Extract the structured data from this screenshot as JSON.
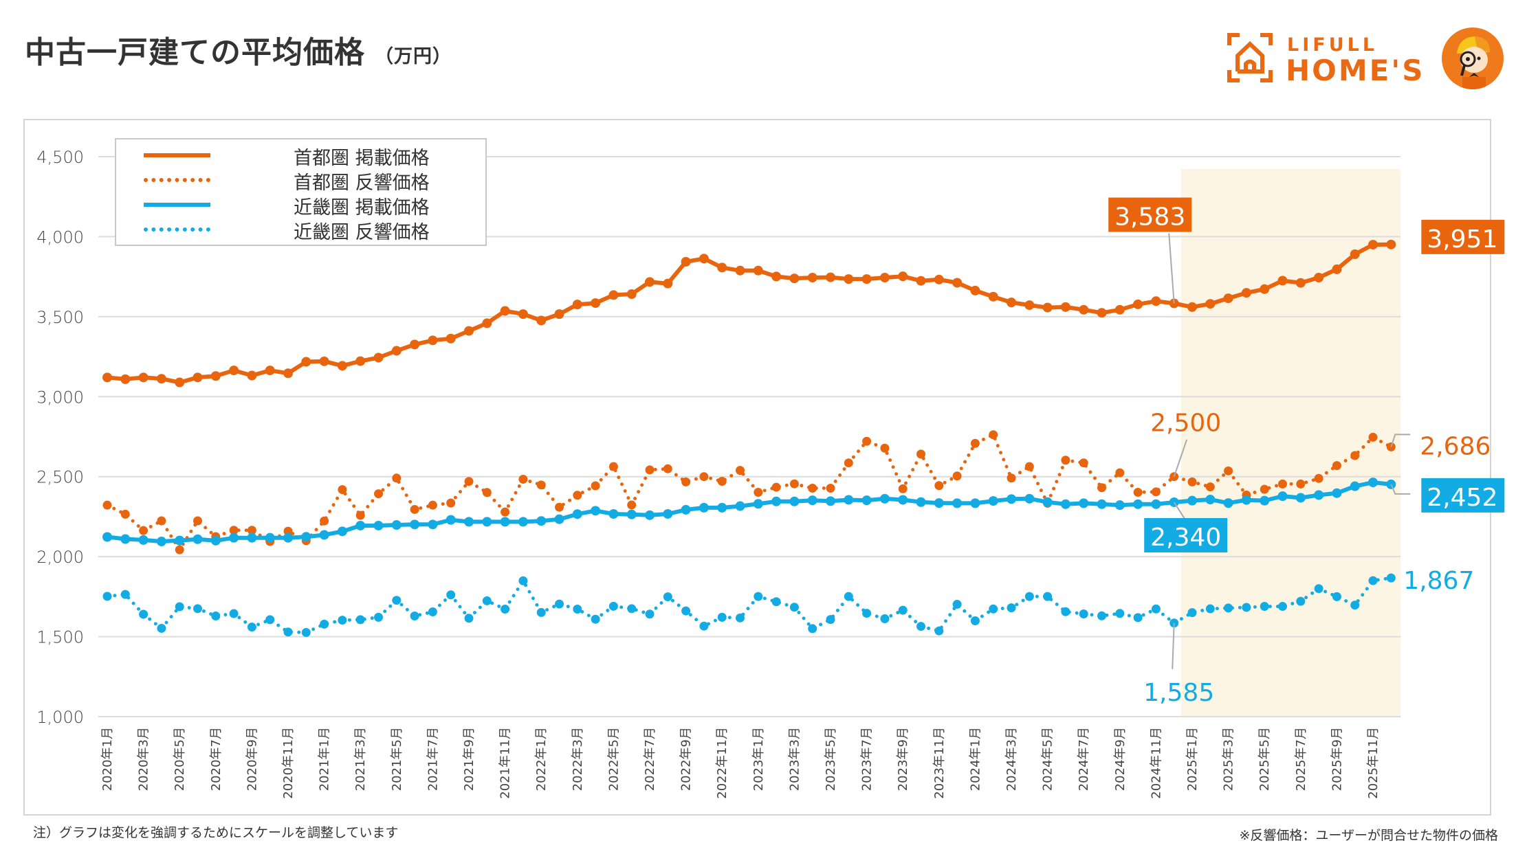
{
  "header": {
    "title": "中古一戸建ての平均価格",
    "unit": "（万円）"
  },
  "logo": {
    "line1": "LIFULL",
    "line2": "HOME'S",
    "icon": "house-bracket-icon",
    "mascot": "mascot-detective-icon"
  },
  "colors": {
    "tokyo": "#E8650E",
    "kinki": "#12ABE3",
    "highlight": "#FDF5E3",
    "grid": "#dddddd"
  },
  "notes": {
    "left": "注）グラフは変化を強調するためにスケールを調整しています",
    "right": "※反響価格：ユーザーが問合せた物件の価格"
  },
  "chart_data": {
    "type": "line",
    "title": "中古一戸建ての平均価格（万円）",
    "xlabel": "",
    "ylabel": "",
    "ylim": [
      1000,
      4500
    ],
    "yticks": [
      1000,
      1500,
      2000,
      2500,
      3000,
      3500,
      4000,
      4500
    ],
    "ytick_labels": [
      "1,000",
      "1,500",
      "2,000",
      "2,500",
      "3,000",
      "3,500",
      "4,000",
      "4,500"
    ],
    "grid": true,
    "legend_position": "top-left",
    "highlight_range": [
      "2025年1月",
      "2025年12月"
    ],
    "x": [
      "2020年1月",
      "2020年2月",
      "2020年3月",
      "2020年4月",
      "2020年5月",
      "2020年6月",
      "2020年7月",
      "2020年8月",
      "2020年9月",
      "2020年10月",
      "2020年11月",
      "2020年12月",
      "2021年1月",
      "2021年2月",
      "2021年3月",
      "2021年4月",
      "2021年5月",
      "2021年6月",
      "2021年7月",
      "2021年8月",
      "2021年9月",
      "2021年10月",
      "2021年11月",
      "2021年12月",
      "2022年1月",
      "2022年2月",
      "2022年3月",
      "2022年4月",
      "2022年5月",
      "2022年6月",
      "2022年7月",
      "2022年8月",
      "2022年9月",
      "2022年10月",
      "2022年11月",
      "2022年12月",
      "2023年1月",
      "2023年2月",
      "2023年3月",
      "2023年4月",
      "2023年5月",
      "2023年6月",
      "2023年7月",
      "2023年8月",
      "2023年9月",
      "2023年10月",
      "2023年11月",
      "2023年12月",
      "2024年1月",
      "2024年2月",
      "2024年3月",
      "2024年4月",
      "2024年5月",
      "2024年6月",
      "2024年7月",
      "2024年8月",
      "2024年9月",
      "2024年10月",
      "2024年11月",
      "2024年12月",
      "2025年1月",
      "2025年2月",
      "2025年3月",
      "2025年4月",
      "2025年5月",
      "2025年6月",
      "2025年7月",
      "2025年8月",
      "2025年9月",
      "2025年10月",
      "2025年11月",
      "2025年12月"
    ],
    "xtick_labels": [
      "2020年1月",
      "2020年3月",
      "2020年5月",
      "2020年7月",
      "2020年9月",
      "2020年11月",
      "2021年1月",
      "2021年3月",
      "2021年5月",
      "2021年7月",
      "2021年9月",
      "2021年11月",
      "2022年1月",
      "2022年3月",
      "2022年5月",
      "2022年7月",
      "2022年9月",
      "2022年11月",
      "2023年1月",
      "2023年3月",
      "2023年5月",
      "2023年7月",
      "2023年9月",
      "2023年11月",
      "2024年1月",
      "2024年3月",
      "2024年5月",
      "2024年7月",
      "2024年9月",
      "2024年11月",
      "2025年1月",
      "2025年3月",
      "2025年5月",
      "2025年7月",
      "2025年9月",
      "2025年11月"
    ],
    "series": [
      {
        "name": "首都圏 掲載価格",
        "color": "#E8650E",
        "style": "solid",
        "values": [
          3120,
          3109,
          3120,
          3112,
          3089,
          3120,
          3129,
          3164,
          3132,
          3164,
          3146,
          3218,
          3221,
          3193,
          3222,
          3244,
          3287,
          3326,
          3352,
          3363,
          3411,
          3459,
          3536,
          3516,
          3476,
          3516,
          3576,
          3585,
          3635,
          3641,
          3717,
          3707,
          3843,
          3863,
          3807,
          3788,
          3788,
          3751,
          3739,
          3744,
          3746,
          3735,
          3735,
          3744,
          3752,
          3724,
          3732,
          3712,
          3663,
          3625,
          3589,
          3572,
          3557,
          3560,
          3543,
          3524,
          3543,
          3577,
          3597,
          3583,
          3560,
          3580,
          3615,
          3649,
          3672,
          3725,
          3711,
          3744,
          3796,
          3890,
          3950,
          3951
        ]
      },
      {
        "name": "首都圏 反響価格",
        "color": "#E8650E",
        "style": "dotted",
        "values": [
          2322,
          2265,
          2163,
          2224,
          2043,
          2224,
          2125,
          2165,
          2165,
          2095,
          2159,
          2100,
          2223,
          2419,
          2258,
          2393,
          2491,
          2295,
          2322,
          2335,
          2470,
          2401,
          2279,
          2484,
          2448,
          2309,
          2384,
          2443,
          2563,
          2323,
          2542,
          2549,
          2467,
          2500,
          2471,
          2539,
          2402,
          2434,
          2455,
          2428,
          2428,
          2586,
          2721,
          2678,
          2424,
          2641,
          2444,
          2504,
          2708,
          2762,
          2491,
          2563,
          2334,
          2603,
          2586,
          2431,
          2524,
          2402,
          2405,
          2500,
          2467,
          2436,
          2536,
          2385,
          2421,
          2454,
          2454,
          2489,
          2569,
          2632,
          2746,
          2686
        ]
      },
      {
        "name": "近畿圏 掲載価格",
        "color": "#12ABE3",
        "style": "solid",
        "values": [
          2123,
          2110,
          2104,
          2095,
          2101,
          2109,
          2100,
          2118,
          2118,
          2118,
          2118,
          2124,
          2136,
          2158,
          2194,
          2194,
          2198,
          2201,
          2201,
          2230,
          2218,
          2218,
          2218,
          2218,
          2223,
          2234,
          2266,
          2287,
          2267,
          2264,
          2259,
          2267,
          2293,
          2306,
          2306,
          2316,
          2330,
          2345,
          2345,
          2352,
          2347,
          2355,
          2352,
          2362,
          2355,
          2341,
          2335,
          2334,
          2334,
          2348,
          2360,
          2362,
          2341,
          2328,
          2334,
          2328,
          2322,
          2328,
          2328,
          2340,
          2350,
          2357,
          2335,
          2354,
          2350,
          2378,
          2368,
          2385,
          2397,
          2440,
          2464,
          2452
        ]
      },
      {
        "name": "近畿圏 反響価格",
        "color": "#12ABE3",
        "style": "dotted",
        "values": [
          1752,
          1764,
          1640,
          1552,
          1687,
          1675,
          1629,
          1644,
          1560,
          1606,
          1529,
          1526,
          1578,
          1603,
          1606,
          1621,
          1727,
          1629,
          1655,
          1761,
          1615,
          1724,
          1672,
          1849,
          1651,
          1704,
          1672,
          1609,
          1690,
          1675,
          1641,
          1749,
          1661,
          1566,
          1621,
          1617,
          1751,
          1718,
          1684,
          1550,
          1607,
          1751,
          1646,
          1612,
          1665,
          1564,
          1536,
          1702,
          1599,
          1673,
          1680,
          1751,
          1751,
          1656,
          1642,
          1630,
          1645,
          1619,
          1673,
          1585,
          1650,
          1674,
          1679,
          1683,
          1689,
          1689,
          1721,
          1800,
          1750,
          1697,
          1850,
          1867
        ]
      }
    ],
    "annotations": [
      {
        "series": 0,
        "x": "2024年12月",
        "text": "3,583",
        "style": "boxed"
      },
      {
        "series": 0,
        "x": "2025年12月",
        "text": "3,951",
        "style": "boxed"
      },
      {
        "series": 1,
        "x": "2024年12月",
        "text": "2,500",
        "style": "plain"
      },
      {
        "series": 1,
        "x": "2025年12月",
        "text": "2,686",
        "style": "plain"
      },
      {
        "series": 2,
        "x": "2024年12月",
        "text": "2,340",
        "style": "boxed"
      },
      {
        "series": 2,
        "x": "2025年12月",
        "text": "2,452",
        "style": "boxed"
      },
      {
        "series": 3,
        "x": "2024年12月",
        "text": "1,585",
        "style": "plain"
      },
      {
        "series": 3,
        "x": "2025年12月",
        "text": "1,867",
        "style": "plain"
      }
    ]
  }
}
